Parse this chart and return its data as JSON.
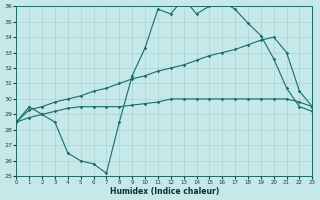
{
  "xlabel": "Humidex (Indice chaleur)",
  "background_color": "#c5e8e8",
  "grid_color": "#aad4d4",
  "line_color": "#1a6b6b",
  "xlim": [
    0,
    23
  ],
  "ylim": [
    25,
    36
  ],
  "yticks": [
    25,
    26,
    27,
    28,
    29,
    30,
    31,
    32,
    33,
    34,
    35,
    36
  ],
  "xticks": [
    0,
    1,
    2,
    3,
    4,
    5,
    6,
    7,
    8,
    9,
    10,
    11,
    12,
    13,
    14,
    15,
    16,
    17,
    18,
    19,
    20,
    21,
    22,
    23
  ],
  "hours": [
    0,
    1,
    2,
    3,
    4,
    5,
    6,
    7,
    8,
    9,
    10,
    11,
    12,
    13,
    14,
    15,
    16,
    17,
    18,
    19,
    20,
    21,
    22,
    23
  ],
  "line_spiky": [
    28.5,
    29.5,
    29.0,
    28.5,
    26.5,
    26.0,
    25.8,
    25.2,
    28.5,
    31.5,
    33.3,
    35.8,
    35.5,
    36.5,
    35.5,
    36.0,
    36.3,
    35.8,
    34.9,
    34.1,
    32.6,
    30.7,
    29.5,
    29.2
  ],
  "line_upper": [
    28.5,
    29.3,
    29.5,
    29.8,
    30.0,
    30.2,
    30.5,
    30.7,
    31.0,
    31.3,
    31.5,
    31.8,
    32.0,
    32.2,
    32.5,
    32.8,
    33.0,
    33.2,
    33.5,
    33.8,
    34.0,
    33.0,
    30.5,
    29.5
  ],
  "line_lower": [
    28.5,
    28.8,
    29.0,
    29.2,
    29.4,
    29.5,
    29.5,
    29.5,
    29.5,
    29.6,
    29.7,
    29.8,
    30.0,
    30.0,
    30.0,
    30.0,
    30.0,
    30.0,
    30.0,
    30.0,
    30.0,
    30.0,
    29.8,
    29.5
  ]
}
